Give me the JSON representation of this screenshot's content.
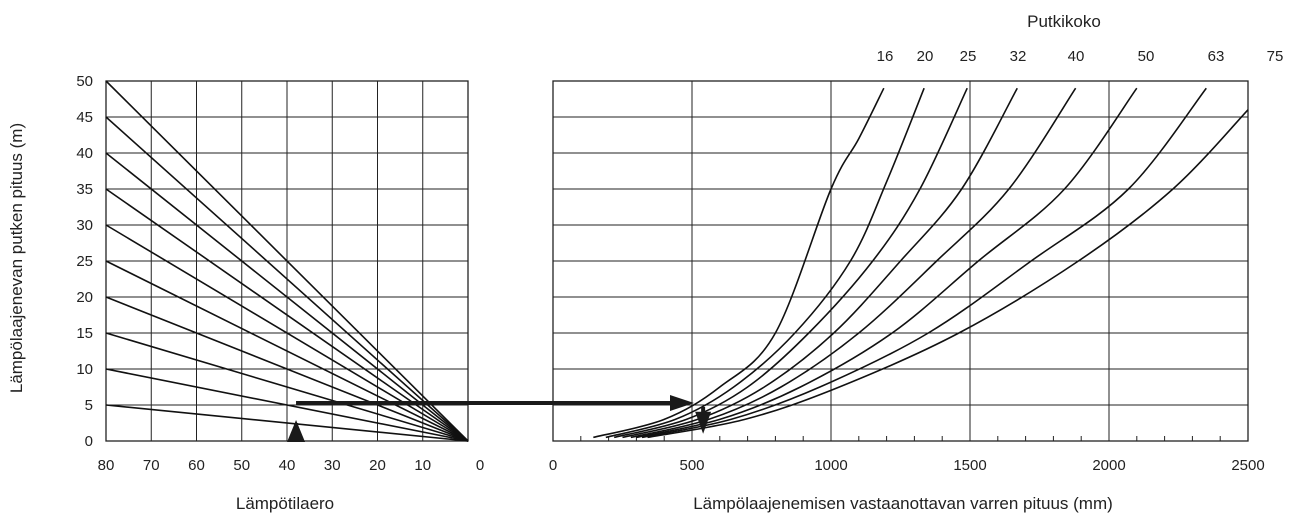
{
  "chart_data": [
    {
      "type": "line",
      "ylabel": "Lämpölaajenevan putken pituus (m)",
      "xlabel": "Lämpötilaero",
      "x_ticks": [
        "80",
        "70",
        "60",
        "50",
        "40",
        "30",
        "20",
        "10",
        "0"
      ],
      "y_ticks": [
        "0",
        "5",
        "10",
        "15",
        "20",
        "25",
        "30",
        "35",
        "40",
        "45",
        "50"
      ],
      "xlim": [
        80,
        0
      ],
      "ylim": [
        0,
        50
      ],
      "grid": true,
      "series": [
        {
          "length_m": 5,
          "points": [
            [
              80,
              5
            ],
            [
              0,
              0
            ]
          ]
        },
        {
          "length_m": 10,
          "points": [
            [
              80,
              10
            ],
            [
              0,
              0
            ]
          ]
        },
        {
          "length_m": 15,
          "points": [
            [
              80,
              15
            ],
            [
              0,
              0
            ]
          ]
        },
        {
          "length_m": 20,
          "points": [
            [
              80,
              20
            ],
            [
              0,
              0
            ]
          ]
        },
        {
          "length_m": 25,
          "points": [
            [
              80,
              25
            ],
            [
              0,
              0
            ]
          ]
        },
        {
          "length_m": 30,
          "points": [
            [
              80,
              30
            ],
            [
              0,
              0
            ]
          ]
        },
        {
          "length_m": 35,
          "points": [
            [
              80,
              35
            ],
            [
              0,
              0
            ]
          ]
        },
        {
          "length_m": 40,
          "points": [
            [
              80,
              40
            ],
            [
              0,
              0
            ]
          ]
        },
        {
          "length_m": 45,
          "points": [
            [
              80,
              45
            ],
            [
              0,
              0
            ]
          ]
        },
        {
          "length_m": 50,
          "points": [
            [
              80,
              50
            ],
            [
              0,
              0
            ]
          ]
        }
      ],
      "example_marker": {
        "x": 38,
        "from_y": 0,
        "to_y": 5
      }
    },
    {
      "type": "line",
      "title": "Putkikoko",
      "xlabel": "Lämpölaajenemisen vastaanottavan varren pituus (mm)",
      "x_ticks": [
        "0",
        "500",
        "1000",
        "1500",
        "2000",
        "2500"
      ],
      "xlim": [
        0,
        2500
      ],
      "ylim": [
        0,
        50
      ],
      "grid": true,
      "minor_ticks_every": 100,
      "series": [
        {
          "name": "16",
          "points": [
            [
              145,
              0.5
            ],
            [
              400,
              3
            ],
            [
              600,
              7.5
            ],
            [
              800,
              15
            ],
            [
              1000,
              35
            ],
            [
              1100,
              42
            ],
            [
              1190,
              49
            ]
          ]
        },
        {
          "name": "20",
          "points": [
            [
              190,
              0.5
            ],
            [
              440,
              3
            ],
            [
              650,
              7.5
            ],
            [
              870,
              15
            ],
            [
              1070,
              25
            ],
            [
              1200,
              36
            ],
            [
              1335,
              49
            ]
          ]
        },
        {
          "name": "25",
          "points": [
            [
              220,
              0.5
            ],
            [
              480,
              3
            ],
            [
              700,
              7.5
            ],
            [
              920,
              15
            ],
            [
              1150,
              25
            ],
            [
              1320,
              35
            ],
            [
              1490,
              49
            ]
          ]
        },
        {
          "name": "32",
          "points": [
            [
              250,
              0.5
            ],
            [
              520,
              3
            ],
            [
              760,
              7.5
            ],
            [
              1010,
              15
            ],
            [
              1250,
              25
            ],
            [
              1470,
              35
            ],
            [
              1670,
              49
            ]
          ]
        },
        {
          "name": "40",
          "points": [
            [
              280,
              0.5
            ],
            [
              560,
              3
            ],
            [
              820,
              7.5
            ],
            [
              1100,
              15
            ],
            [
              1380,
              25
            ],
            [
              1640,
              35
            ],
            [
              1880,
              49
            ]
          ]
        },
        {
          "name": "50",
          "points": [
            [
              300,
              0.5
            ],
            [
              600,
              3
            ],
            [
              890,
              7.5
            ],
            [
              1220,
              15
            ],
            [
              1530,
              25
            ],
            [
              1840,
              35
            ],
            [
              2100,
              49
            ]
          ]
        },
        {
          "name": "63",
          "points": [
            [
              320,
              0.5
            ],
            [
              640,
              3
            ],
            [
              960,
              7.5
            ],
            [
              1350,
              15
            ],
            [
              1720,
              25
            ],
            [
              2070,
              35
            ],
            [
              2350,
              49
            ]
          ]
        },
        {
          "name": "75",
          "points": [
            [
              340,
              0.5
            ],
            [
              690,
              3
            ],
            [
              1030,
              7.5
            ],
            [
              1460,
              15
            ],
            [
              1890,
              25
            ],
            [
              2230,
              35
            ],
            [
              2500,
              46
            ]
          ]
        }
      ],
      "example_marker": {
        "x": 540,
        "from_y": 5,
        "to_y": 1
      }
    }
  ],
  "connector": {
    "from": [
      38,
      5
    ],
    "to": [
      500,
      5
    ]
  }
}
